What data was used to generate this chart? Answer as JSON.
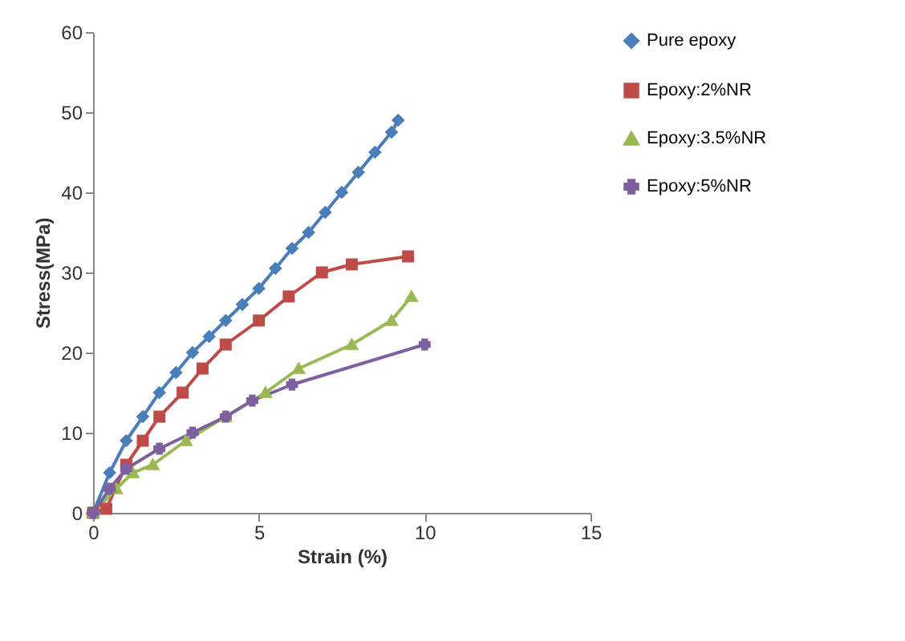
{
  "chart_data": {
    "type": "line",
    "xlabel": "Strain (%)",
    "ylabel": "Stress(MPa)",
    "xlim": [
      0,
      15
    ],
    "xticks": [
      0,
      5,
      10,
      15
    ],
    "ylim": [
      0,
      60
    ],
    "yticks": [
      0,
      10,
      20,
      30,
      40,
      50,
      60
    ],
    "grid": false,
    "legend": "right",
    "series": [
      {
        "name": "Pure epoxy",
        "color": "#4a7ebb",
        "marker": "diamond",
        "x": [
          0,
          0.5,
          1,
          1.5,
          2,
          2.5,
          3,
          3.5,
          4,
          4.5,
          5,
          5.5,
          6,
          6.5,
          7,
          7.5,
          8,
          8.5,
          9,
          9.2
        ],
        "values": [
          0,
          5,
          9,
          12,
          15,
          17.5,
          20,
          22,
          24,
          26,
          28,
          30.5,
          33,
          35,
          37.5,
          40,
          42.5,
          45,
          47.5,
          49
        ]
      },
      {
        "name": "Epoxy:2%NR",
        "color": "#be4b48",
        "marker": "square",
        "x": [
          0,
          0.4,
          1,
          1.5,
          2,
          2.7,
          3.3,
          4,
          5,
          5.9,
          6.9,
          7.8,
          9.5
        ],
        "values": [
          0,
          0.5,
          6,
          9,
          12,
          15,
          18,
          21,
          24,
          27,
          30,
          31,
          32
        ]
      },
      {
        "name": "Epoxy:3.5%NR",
        "color": "#98b954",
        "marker": "triangle",
        "x": [
          0,
          0.7,
          1.2,
          1.8,
          2.8,
          4,
          5.2,
          6.2,
          7.8,
          9,
          9.6
        ],
        "values": [
          0,
          3,
          5,
          6,
          9,
          12,
          15,
          18,
          21,
          24,
          27
        ]
      },
      {
        "name": "Epoxy:5%NR",
        "color": "#7d60a0",
        "marker": "cross",
        "x": [
          0,
          0.5,
          1,
          2,
          3,
          4,
          4.8,
          6,
          10
        ],
        "values": [
          0,
          3,
          5.5,
          8,
          10,
          12,
          14,
          16,
          21
        ]
      }
    ]
  }
}
